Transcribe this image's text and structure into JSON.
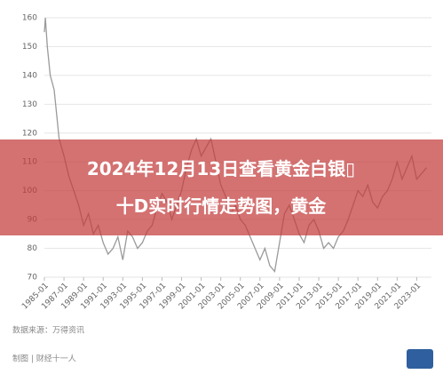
{
  "chart_data": {
    "type": "line",
    "overlay_text": [
      "2024年12月13日查看黄金白银▯十D实时行情走势图，黄金"
    ],
    "source": "数据来源：万得资讯",
    "credit": "制图 | 财经十一人",
    "color": "#9a9a9a",
    "grid": true,
    "x": [
      1985,
      1985.1,
      1985.3,
      1985.6,
      1986,
      1986.5,
      1987,
      1987.5,
      1988,
      1988.5,
      1989,
      1989.5,
      1990,
      1990.5,
      1991,
      1991.5,
      1992,
      1992.5,
      1993,
      1993.5,
      1994,
      1994.5,
      1995,
      1995.5,
      1996,
      1996.5,
      1997,
      1997.5,
      1998,
      1998.5,
      1999,
      1999.5,
      2000,
      2000.5,
      2001,
      2001.5,
      2002,
      2002.5,
      2003,
      2003.5,
      2004,
      2004.5,
      2005,
      2005.5,
      2006,
      2006.5,
      2007,
      2007.5,
      2008,
      2008.5,
      2009,
      2009.5,
      2010,
      2010.5,
      2011,
      2011.5,
      2012,
      2012.5,
      2013,
      2013.5,
      2014,
      2014.5,
      2015,
      2015.5,
      2016,
      2016.5,
      2017,
      2017.5,
      2018,
      2018.5,
      2019,
      2019.5,
      2020,
      2020.5,
      2021,
      2021.5,
      2022,
      2022.5,
      2023,
      2023.5,
      2024
    ],
    "values": [
      155,
      160,
      150,
      140,
      135,
      118,
      112,
      105,
      100,
      95,
      88,
      92,
      85,
      88,
      82,
      78,
      80,
      84,
      76,
      86,
      84,
      80,
      82,
      86,
      88,
      94,
      99,
      96,
      90,
      95,
      100,
      108,
      114,
      118,
      112,
      115,
      118,
      110,
      102,
      98,
      92,
      95,
      90,
      88,
      84,
      80,
      76,
      80,
      74,
      72,
      82,
      92,
      95,
      90,
      85,
      82,
      88,
      90,
      86,
      80,
      82,
      80,
      84,
      86,
      90,
      95,
      100,
      98,
      102,
      96,
      94,
      98,
      100,
      104,
      110,
      104,
      108,
      112,
      104,
      106,
      108
    ],
    "xlim": [
      1985,
      2024.5
    ],
    "ylim": [
      70,
      160
    ],
    "yticks": [
      70,
      80,
      90,
      100,
      110,
      120,
      130,
      140,
      150,
      160
    ],
    "xticks": [
      {
        "value": 1985,
        "label": "1985-01"
      },
      {
        "value": 1987,
        "label": "1987-01"
      },
      {
        "value": 1989,
        "label": "1989-01"
      },
      {
        "value": 1991,
        "label": "1991-01"
      },
      {
        "value": 1993,
        "label": "1993-01"
      },
      {
        "value": 1995,
        "label": "1995-01"
      },
      {
        "value": 1997,
        "label": "1997-01"
      },
      {
        "value": 1999,
        "label": "1999-01"
      },
      {
        "value": 2001,
        "label": "2001-01"
      },
      {
        "value": 2003,
        "label": "2003-01"
      },
      {
        "value": 2005,
        "label": "2005-01"
      },
      {
        "value": 2007,
        "label": "2007-01"
      },
      {
        "value": 2009,
        "label": "2009-01"
      },
      {
        "value": 2011,
        "label": "2011-01"
      },
      {
        "value": 2013,
        "label": "2013-01"
      },
      {
        "value": 2015,
        "label": "2015-01"
      },
      {
        "value": 2017,
        "label": "2017-01"
      },
      {
        "value": 2019,
        "label": "2019-01"
      },
      {
        "value": 2021,
        "label": "2021-01"
      },
      {
        "value": 2023,
        "label": "2023-01"
      }
    ]
  }
}
